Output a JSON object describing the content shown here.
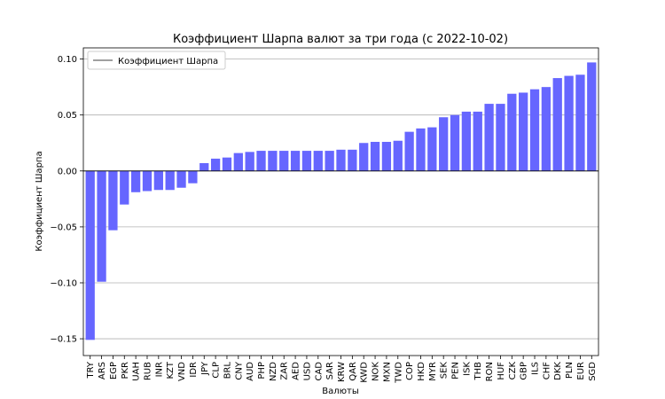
{
  "chart_data": {
    "type": "bar",
    "title": "Коэффициент Шарпа валют за три года (с 2022-10-02)",
    "xlabel": "Валюты",
    "ylabel": "Коэффициент Шарпа",
    "ylim": [
      -0.165,
      0.11
    ],
    "yticks": [
      0.1,
      0.05,
      0.0,
      -0.05,
      -0.1,
      -0.15
    ],
    "ytick_labels": [
      "0.10",
      "0.05",
      "0.00",
      "−0.05",
      "−0.10",
      "−0.15"
    ],
    "grid": true,
    "zero_line": true,
    "legend": {
      "placement": "top-left",
      "entries": [
        "Коэффициент Шарпа"
      ]
    },
    "bar_color": "#6666ff",
    "categories": [
      "TRY",
      "ARS",
      "EGP",
      "PKR",
      "UAH",
      "RUB",
      "INR",
      "KZT",
      "VND",
      "IDR",
      "JPY",
      "CLP",
      "BRL",
      "CNY",
      "AUD",
      "PHP",
      "NZD",
      "ZAR",
      "AED",
      "USD",
      "CAD",
      "SAR",
      "KRW",
      "QAR",
      "KWD",
      "NOK",
      "MXN",
      "TWD",
      "COP",
      "HKD",
      "MYR",
      "SEK",
      "PEN",
      "ISK",
      "THB",
      "RON",
      "HUF",
      "CZK",
      "GBP",
      "ILS",
      "CHF",
      "DKK",
      "PLN",
      "EUR",
      "SGD"
    ],
    "values": [
      -0.151,
      -0.099,
      -0.053,
      -0.03,
      -0.019,
      -0.018,
      -0.017,
      -0.017,
      -0.015,
      -0.011,
      0.007,
      0.011,
      0.012,
      0.016,
      0.017,
      0.018,
      0.018,
      0.018,
      0.018,
      0.018,
      0.018,
      0.018,
      0.019,
      0.019,
      0.025,
      0.026,
      0.026,
      0.027,
      0.035,
      0.038,
      0.039,
      0.048,
      0.05,
      0.053,
      0.053,
      0.06,
      0.06,
      0.069,
      0.07,
      0.073,
      0.075,
      0.083,
      0.085,
      0.086,
      0.097
    ]
  }
}
